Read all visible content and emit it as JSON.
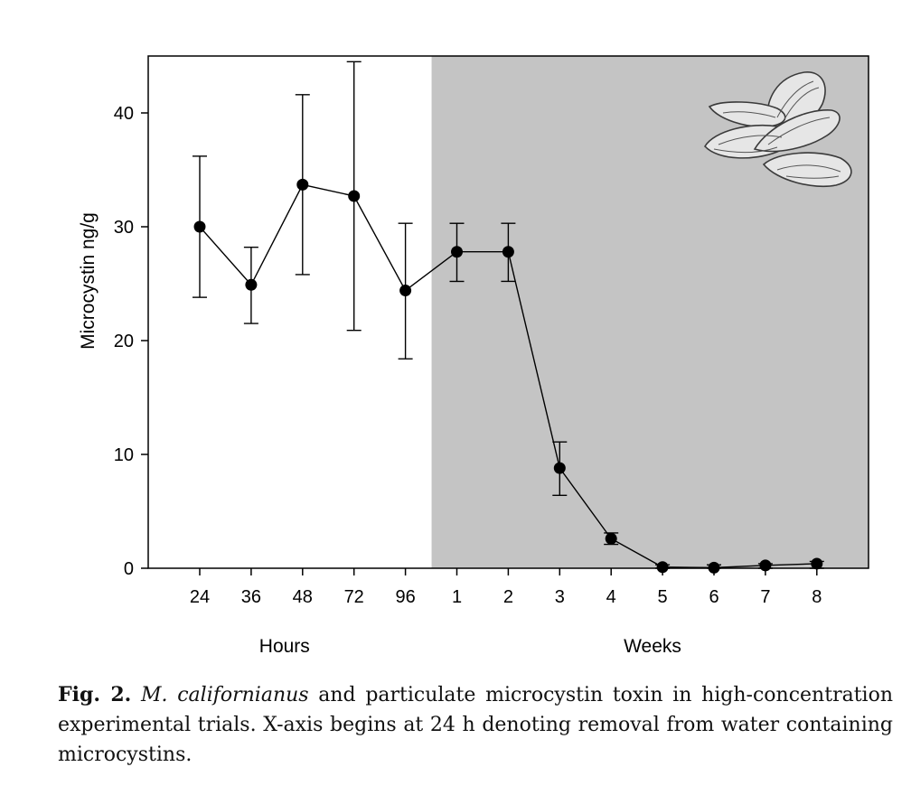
{
  "chart_data": {
    "type": "line",
    "ylabel": "Microcystin ng/g",
    "ylim": [
      0,
      45
    ],
    "yticks": [
      0,
      10,
      20,
      30,
      40
    ],
    "group_labels": [
      "Hours",
      "Weeks"
    ],
    "shaded_region": {
      "from_category": "1",
      "to_category": "8",
      "color": "#c4c4c4"
    },
    "categories": [
      "24",
      "36",
      "48",
      "72",
      "96",
      "1",
      "2",
      "3",
      "4",
      "5",
      "6",
      "7",
      "8"
    ],
    "groups": [
      "Hours",
      "Hours",
      "Hours",
      "Hours",
      "Hours",
      "Weeks",
      "Weeks",
      "Weeks",
      "Weeks",
      "Weeks",
      "Weeks",
      "Weeks",
      "Weeks"
    ],
    "series": [
      {
        "values": [
          30.0,
          24.9,
          33.7,
          32.7,
          24.4,
          27.8,
          27.8,
          8.8,
          2.6,
          0.1,
          0.05,
          0.25,
          0.4
        ],
        "error_low": [
          23.8,
          21.5,
          25.8,
          20.9,
          18.4,
          25.2,
          25.2,
          6.4,
          2.1,
          0.0,
          0.0,
          0.0,
          0.0
        ],
        "error_high": [
          36.2,
          28.2,
          41.6,
          44.5,
          30.3,
          30.3,
          30.3,
          11.1,
          3.1,
          0.3,
          0.3,
          0.4,
          0.6
        ]
      }
    ],
    "grid": false,
    "marker": "filled-circle",
    "inset_image": "mussels-illustration"
  },
  "caption": {
    "label": "Fig. 2.",
    "species": "M. californianus",
    "text": " and particulate microcystin toxin in high-concentration experimental trials. X-axis begins at 24 h denoting removal from water containing microcystins."
  }
}
